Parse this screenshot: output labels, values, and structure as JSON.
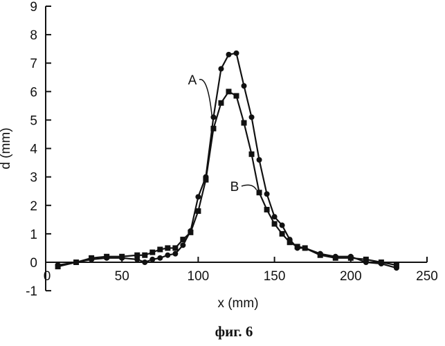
{
  "chart_data": {
    "type": "line",
    "xlabel": "x (mm)",
    "ylabel": "d (mm)",
    "caption": "фиг. 6",
    "xlim": [
      0,
      250
    ],
    "ylim": [
      -1,
      9
    ],
    "xticks": [
      "0",
      "50",
      "100",
      "150",
      "200",
      "250"
    ],
    "yticks": [
      "-1",
      "0",
      "1",
      "2",
      "3",
      "4",
      "5",
      "6",
      "7",
      "8",
      "9"
    ],
    "grid": false,
    "series": [
      {
        "name": "A",
        "marker": "circle",
        "x": [
          8,
          20,
          30,
          40,
          50,
          60,
          65,
          70,
          75,
          80,
          85,
          90,
          95,
          100,
          105,
          110,
          115,
          120,
          125,
          130,
          135,
          140,
          145,
          150,
          155,
          160,
          165,
          170,
          180,
          190,
          200,
          210,
          220,
          230
        ],
        "y": [
          -0.1,
          0.0,
          0.1,
          0.15,
          0.15,
          0.1,
          0.0,
          0.1,
          0.15,
          0.25,
          0.3,
          0.6,
          1.1,
          2.3,
          3.0,
          5.1,
          6.8,
          7.3,
          7.35,
          6.2,
          5.1,
          3.6,
          2.4,
          1.6,
          1.3,
          0.8,
          0.5,
          0.5,
          0.3,
          0.2,
          0.2,
          0.0,
          -0.05,
          -0.2
        ]
      },
      {
        "name": "B",
        "marker": "square",
        "x": [
          8,
          20,
          30,
          40,
          50,
          60,
          65,
          70,
          75,
          80,
          85,
          90,
          95,
          100,
          105,
          110,
          115,
          120,
          125,
          130,
          135,
          140,
          145,
          150,
          155,
          160,
          165,
          170,
          180,
          190,
          200,
          210,
          220,
          230
        ],
        "y": [
          -0.15,
          0.0,
          0.15,
          0.2,
          0.2,
          0.25,
          0.25,
          0.35,
          0.45,
          0.5,
          0.5,
          0.8,
          1.05,
          1.8,
          2.9,
          4.7,
          5.6,
          6.0,
          5.85,
          4.9,
          3.8,
          2.45,
          1.85,
          1.35,
          1.0,
          0.7,
          0.55,
          0.5,
          0.25,
          0.15,
          0.15,
          0.1,
          0.0,
          -0.1
        ]
      }
    ],
    "annotations": [
      {
        "text": "A",
        "series": "A"
      },
      {
        "text": "B",
        "series": "B"
      }
    ]
  }
}
